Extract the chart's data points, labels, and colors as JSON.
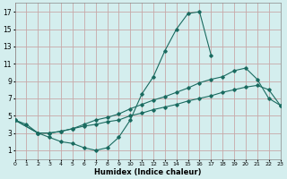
{
  "xlabel": "Humidex (Indice chaleur)",
  "background_color": "#d4eeee",
  "grid_color": "#c8a8a8",
  "line_color": "#1a6b60",
  "xlim": [
    0,
    23
  ],
  "ylim": [
    0,
    18
  ],
  "xticks": [
    0,
    1,
    2,
    3,
    4,
    5,
    6,
    7,
    8,
    9,
    10,
    11,
    12,
    13,
    14,
    15,
    16,
    17,
    18,
    19,
    20,
    21,
    22,
    23
  ],
  "yticks": [
    1,
    3,
    5,
    7,
    9,
    11,
    13,
    15,
    17
  ],
  "line1_x": [
    0,
    1,
    2,
    3,
    4,
    5,
    6,
    7,
    8,
    9,
    10,
    11,
    12,
    13,
    14,
    15,
    16,
    17
  ],
  "line1_y": [
    4.5,
    4.0,
    3.0,
    2.5,
    2.0,
    1.8,
    1.3,
    1.0,
    1.3,
    2.5,
    4.5,
    7.5,
    9.5,
    12.5,
    15.0,
    16.8,
    17.0,
    12.0
  ],
  "line2_x": [
    0,
    2,
    3,
    4,
    5,
    6,
    7,
    8,
    9,
    10,
    11,
    12,
    13,
    14,
    15,
    16,
    17,
    18,
    19,
    20,
    21,
    22,
    23
  ],
  "line2_y": [
    4.5,
    3.0,
    3.0,
    3.2,
    3.5,
    4.0,
    4.5,
    4.8,
    5.2,
    5.8,
    6.3,
    6.8,
    7.2,
    7.7,
    8.2,
    8.8,
    9.2,
    9.5,
    10.2,
    10.5,
    9.2,
    7.0,
    6.2
  ],
  "line3_x": [
    0,
    2,
    3,
    4,
    5,
    6,
    7,
    8,
    9,
    10,
    11,
    12,
    13,
    14,
    15,
    16,
    17,
    18,
    19,
    20,
    21,
    22,
    23
  ],
  "line3_y": [
    4.5,
    3.0,
    3.0,
    3.2,
    3.5,
    3.8,
    4.0,
    4.3,
    4.5,
    5.0,
    5.3,
    5.7,
    6.0,
    6.3,
    6.7,
    7.0,
    7.3,
    7.7,
    8.0,
    8.3,
    8.5,
    8.0,
    6.2
  ]
}
